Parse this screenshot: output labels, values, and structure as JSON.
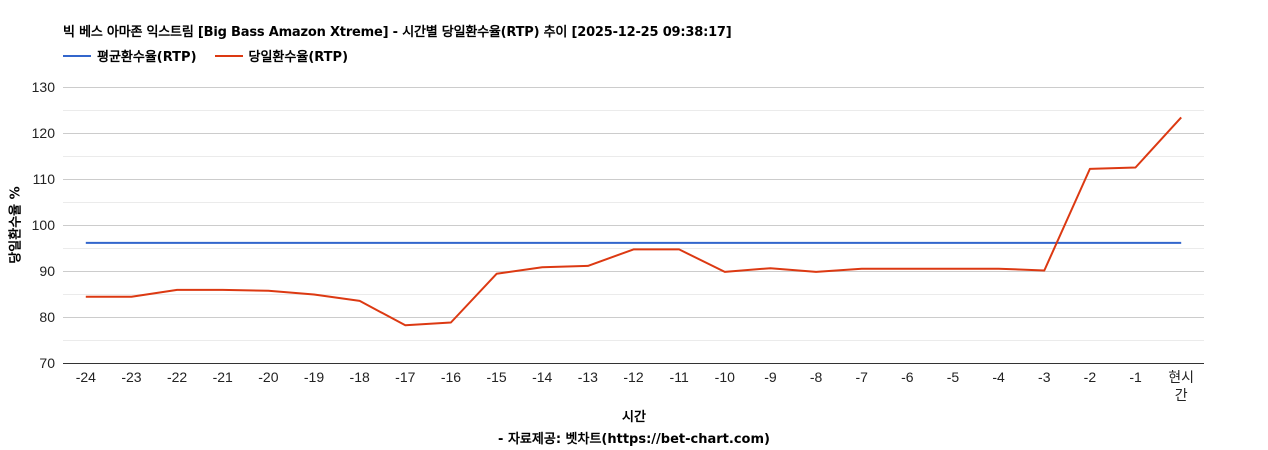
{
  "header": {
    "title": "빅 베스 아마존 익스트림 [Big Bass Amazon Xtreme] - 시간별 당일환수율(RTP) 추이 [2025-12-25 09:38:17]"
  },
  "legend": [
    {
      "label": "평균환수율(RTP)",
      "color": "#3366cc"
    },
    {
      "label": "당일환수율(RTP)",
      "color": "#dc3912"
    }
  ],
  "footer": {
    "credit": "- 자료제공: 벳차트(https://bet-chart.com)"
  },
  "chart_data": {
    "type": "line",
    "title": "빅 베스 아마존 익스트림 [Big Bass Amazon Xtreme] - 시간별 당일환수율(RTP) 추이 [2025-12-25 09:38:17]",
    "xlabel": "시간",
    "ylabel": "당일환수율 %",
    "categories": [
      "-24",
      "-23",
      "-22",
      "-21",
      "-20",
      "-19",
      "-18",
      "-17",
      "-16",
      "-15",
      "-14",
      "-13",
      "-12",
      "-11",
      "-10",
      "-9",
      "-8",
      "-7",
      "-6",
      "-5",
      "-4",
      "-3",
      "-2",
      "-1",
      "현시간"
    ],
    "series": [
      {
        "name": "평균환수율(RTP)",
        "color": "#3366cc",
        "values": [
          96.1,
          96.1,
          96.1,
          96.1,
          96.1,
          96.1,
          96.1,
          96.1,
          96.1,
          96.1,
          96.1,
          96.1,
          96.1,
          96.1,
          96.1,
          96.1,
          96.1,
          96.1,
          96.1,
          96.1,
          96.1,
          96.1,
          96.1,
          96.1,
          96.1
        ]
      },
      {
        "name": "당일환수율(RTP)",
        "color": "#dc3912",
        "values": [
          84.4,
          84.4,
          85.9,
          85.9,
          85.7,
          84.9,
          83.5,
          78.2,
          78.8,
          89.4,
          90.8,
          91.1,
          94.7,
          94.7,
          89.8,
          90.6,
          89.8,
          90.5,
          90.5,
          90.5,
          90.5,
          90.1,
          112.2,
          112.5,
          123.4
        ]
      }
    ],
    "ylim": [
      70,
      130
    ],
    "yticks": [
      70,
      80,
      90,
      100,
      110,
      120,
      130
    ],
    "grid": true,
    "legend_position": "top"
  }
}
